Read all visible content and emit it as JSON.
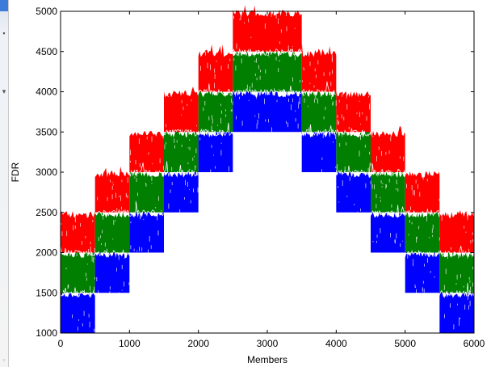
{
  "window_chrome": {
    "icons": [
      "window-icon",
      "pin-icon",
      "dropdown-arrow-icon",
      "corner-icon"
    ]
  },
  "chart_data": {
    "type": "bar",
    "title": "",
    "xlabel": "Members",
    "ylabel": "FDR",
    "xlim": [
      0,
      6000
    ],
    "ylim": [
      1000,
      5000
    ],
    "grid": false,
    "x_ticks": [
      "0",
      "1000",
      "2000",
      "3000",
      "4000",
      "5000",
      "6000"
    ],
    "y_ticks": [
      "1000",
      "1500",
      "2000",
      "2500",
      "3000",
      "3500",
      "4000",
      "4500",
      "5000"
    ],
    "colors": {
      "blue": "#0000ff",
      "green": "#007f00",
      "red": "#ff0000",
      "noise": "#ffffff"
    },
    "segment_width": 500,
    "band_height": 500,
    "segments": [
      {
        "x_start": 0,
        "x_end": 500,
        "blue": [
          1000,
          1500
        ],
        "green": [
          1500,
          2000
        ],
        "red": [
          2000,
          2500
        ]
      },
      {
        "x_start": 500,
        "x_end": 1000,
        "blue": [
          1500,
          2000
        ],
        "green": [
          2000,
          2500
        ],
        "red": [
          2500,
          3000
        ]
      },
      {
        "x_start": 1000,
        "x_end": 1500,
        "blue": [
          2000,
          2500
        ],
        "green": [
          2500,
          3000
        ],
        "red": [
          3000,
          3500
        ]
      },
      {
        "x_start": 1500,
        "x_end": 2000,
        "blue": [
          2500,
          3000
        ],
        "green": [
          3000,
          3500
        ],
        "red": [
          3500,
          4000
        ]
      },
      {
        "x_start": 2000,
        "x_end": 2500,
        "blue": [
          3000,
          3500
        ],
        "green": [
          3500,
          4000
        ],
        "red": [
          4000,
          4500
        ]
      },
      {
        "x_start": 2500,
        "x_end": 3000,
        "blue": [
          3500,
          4000
        ],
        "green": [
          4000,
          4500
        ],
        "red": [
          4500,
          5000
        ]
      },
      {
        "x_start": 3000,
        "x_end": 3500,
        "blue": [
          3500,
          4000
        ],
        "green": [
          4000,
          4500
        ],
        "red": [
          4500,
          5000
        ]
      },
      {
        "x_start": 3500,
        "x_end": 4000,
        "blue": [
          3000,
          3500
        ],
        "green": [
          3500,
          4000
        ],
        "red": [
          4000,
          4500
        ]
      },
      {
        "x_start": 4000,
        "x_end": 4500,
        "blue": [
          2500,
          3000
        ],
        "green": [
          3000,
          3500
        ],
        "red": [
          3500,
          4000
        ]
      },
      {
        "x_start": 4500,
        "x_end": 5000,
        "blue": [
          2000,
          2500
        ],
        "green": [
          2500,
          3000
        ],
        "red": [
          3000,
          3500
        ]
      },
      {
        "x_start": 5000,
        "x_end": 5500,
        "blue": [
          1500,
          2000
        ],
        "green": [
          2000,
          2500
        ],
        "red": [
          2500,
          3000
        ]
      },
      {
        "x_start": 5500,
        "x_end": 6000,
        "blue": [
          1000,
          1500
        ],
        "green": [
          1500,
          2000
        ],
        "red": [
          2000,
          2500
        ]
      }
    ]
  }
}
